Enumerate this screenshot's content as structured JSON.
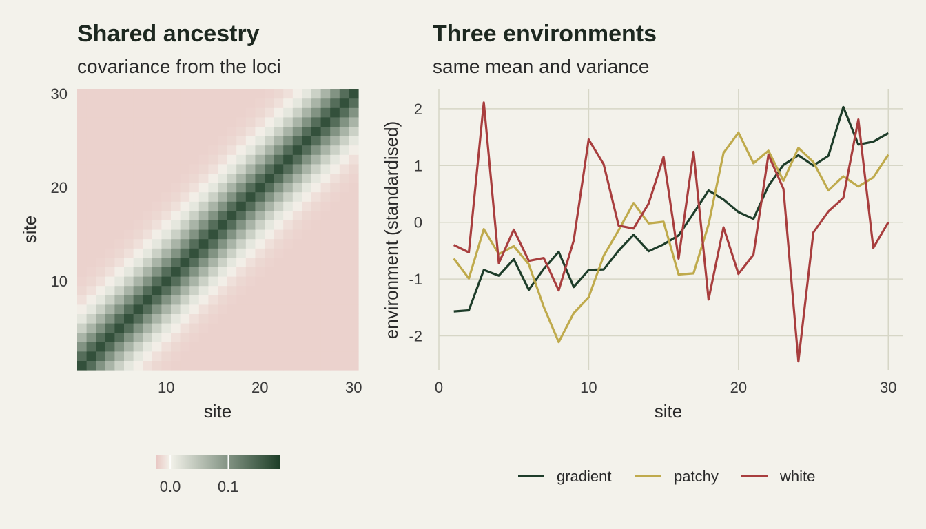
{
  "chart_data": [
    {
      "type": "heatmap",
      "title": "Shared ancestry",
      "subtitle": "covariance from the loci",
      "xlabel": "site",
      "ylabel": "site",
      "x_ticks": [
        10,
        20,
        30
      ],
      "y_ticks": [
        10,
        20,
        30
      ],
      "n": 30,
      "pattern": "covariance decays with distance |i-j| between sites",
      "diagonal_profile": [
        0.17,
        0.14,
        0.1,
        0.065,
        0.035,
        0.012,
        -0.002,
        -0.01,
        -0.015,
        -0.017,
        -0.018,
        -0.018
      ],
      "off_diagonal_far_value": -0.018,
      "colorbar": {
        "ticks": [
          0.0,
          0.1
        ],
        "tick_labels": [
          "0.0",
          "0.1"
        ],
        "range": [
          -0.025,
          0.19
        ],
        "colors": {
          "low": "#e8c6c2",
          "mid": "#f3f2ea",
          "high": "#1c3d26"
        }
      }
    },
    {
      "type": "line",
      "title": "Three environments",
      "subtitle": "same mean and variance",
      "xlabel": "site",
      "ylabel": "environment (standardised)",
      "xlim": [
        0,
        31
      ],
      "ylim": [
        -2.6,
        2.35
      ],
      "x_ticks": [
        0,
        10,
        20,
        30
      ],
      "y_ticks": [
        -2,
        -1,
        0,
        1,
        2
      ],
      "x": [
        1,
        2,
        3,
        4,
        5,
        6,
        7,
        8,
        9,
        10,
        11,
        12,
        13,
        14,
        15,
        16,
        17,
        18,
        19,
        20,
        21,
        22,
        23,
        24,
        25,
        26,
        27,
        28,
        29,
        30
      ],
      "series": [
        {
          "name": "gradient",
          "color": "#1e3d2a",
          "values": [
            -1.57,
            -1.55,
            -0.84,
            -0.94,
            -0.65,
            -1.19,
            -0.82,
            -0.52,
            -1.14,
            -0.84,
            -0.83,
            -0.5,
            -0.22,
            -0.51,
            -0.39,
            -0.23,
            0.16,
            0.56,
            0.4,
            0.18,
            0.06,
            0.64,
            1.01,
            1.18,
            1.0,
            1.17,
            2.03,
            1.37,
            1.42,
            1.57
          ]
        },
        {
          "name": "patchy",
          "color": "#bfaa4c",
          "values": [
            -0.64,
            -0.99,
            -0.12,
            -0.56,
            -0.42,
            -0.74,
            -1.49,
            -2.11,
            -1.6,
            -1.32,
            -0.59,
            -0.14,
            0.34,
            -0.02,
            0.01,
            -0.92,
            -0.9,
            -0.04,
            1.22,
            1.58,
            1.04,
            1.26,
            0.73,
            1.31,
            1.06,
            0.56,
            0.81,
            0.63,
            0.79,
            1.19
          ]
        },
        {
          "name": "white",
          "color": "#a83e3e",
          "values": [
            -0.4,
            -0.53,
            2.11,
            -0.72,
            -0.13,
            -0.68,
            -0.63,
            -1.2,
            -0.32,
            1.46,
            1.02,
            -0.06,
            -0.11,
            0.33,
            1.15,
            -0.64,
            1.24,
            -1.36,
            -0.09,
            -0.91,
            -0.57,
            1.19,
            0.59,
            -2.45,
            -0.18,
            0.19,
            0.43,
            1.81,
            -0.45,
            0.0
          ]
        }
      ],
      "legend_position": "bottom"
    }
  ]
}
